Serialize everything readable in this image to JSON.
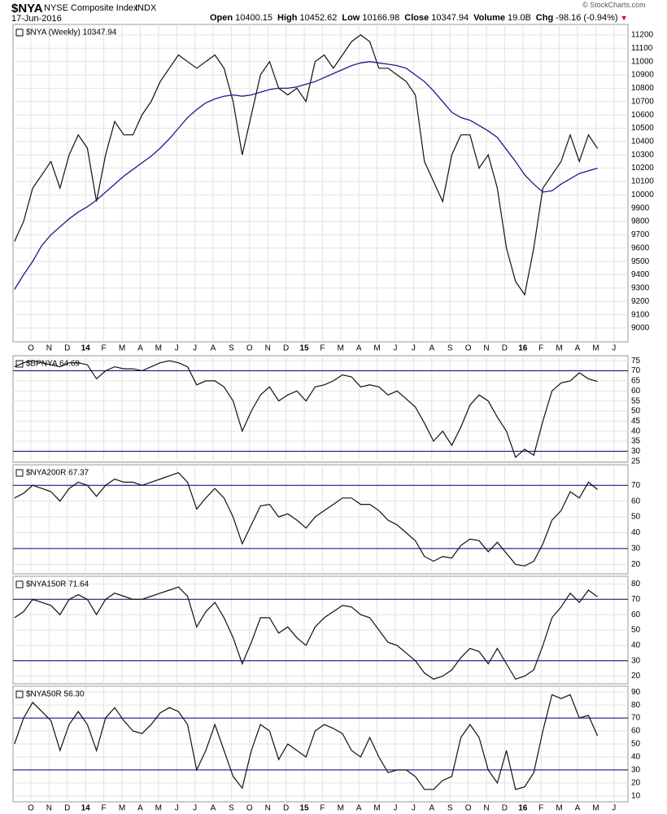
{
  "header": {
    "symbol": "$NYA",
    "name": "NYSE Composite Index",
    "exchange": "INDX",
    "date": "17-Jun-2016",
    "quote": [
      {
        "label": "Open",
        "value": 10400.15
      },
      {
        "label": "High",
        "value": 10452.62
      },
      {
        "label": "Low",
        "value": 10166.98
      },
      {
        "label": "Close",
        "value": 10347.94
      },
      {
        "label": "Volume",
        "value": "19.0B"
      },
      {
        "label": "Chg",
        "value": "-98.16 (-0.94%)"
      }
    ],
    "source": "© StockCharts.com"
  },
  "chart_data": [
    {
      "type": "line",
      "xtick_labels": [
        "O",
        "N",
        "D",
        "14",
        "F",
        "M",
        "A",
        "M",
        "J",
        "J",
        "A",
        "S",
        "O",
        "N",
        "D",
        "15",
        "F",
        "M",
        "A",
        "M",
        "J",
        "J",
        "A",
        "S",
        "O",
        "N",
        "D",
        "16",
        "F",
        "M",
        "A",
        "M",
        "J",
        "J"
      ],
      "ylim": [
        8896,
        11279
      ],
      "yticks": [
        9000,
        9100,
        9200,
        9300,
        9400,
        9500,
        9600,
        9700,
        9800,
        9900,
        10000,
        10100,
        10200,
        10300,
        10400,
        10500,
        10600,
        10700,
        10800,
        10900,
        11000,
        11100,
        11200
      ],
      "grid": true,
      "series": [
        {
          "name": "$NYA (Weekly) 10347.94",
          "color": "#111111",
          "values": [
            9650,
            9800,
            10050,
            10150,
            10250,
            10050,
            10300,
            10450,
            10350,
            9950,
            10300,
            10550,
            10450,
            10450,
            10600,
            10700,
            10850,
            10950,
            11050,
            11000,
            10950,
            11000,
            11050,
            10950,
            10700,
            10300,
            10600,
            10900,
            11000,
            10800,
            10750,
            10800,
            10700,
            11000,
            11050,
            10950,
            11050,
            11150,
            11200,
            11150,
            10950,
            10950,
            10900,
            10850,
            10750,
            10250,
            10100,
            9950,
            10300,
            10450,
            10450,
            10200,
            10300,
            10050,
            9600,
            9350,
            9250,
            9600,
            10050,
            10150,
            10250,
            10450,
            10250,
            10450,
            10347.94
          ]
        },
        {
          "color": "#1a1a8c",
          "values": [
            9290,
            9400,
            9500,
            9620,
            9700,
            9760,
            9820,
            9870,
            9910,
            9960,
            10020,
            10080,
            10140,
            10190,
            10240,
            10290,
            10350,
            10420,
            10500,
            10580,
            10640,
            10690,
            10720,
            10740,
            10750,
            10740,
            10750,
            10770,
            10790,
            10800,
            10800,
            10810,
            10830,
            10850,
            10880,
            10910,
            10940,
            10970,
            10990,
            11000,
            10990,
            10980,
            10970,
            10950,
            10900,
            10850,
            10780,
            10700,
            10620,
            10580,
            10560,
            10520,
            10480,
            10430,
            10340,
            10250,
            10150,
            10080,
            10020,
            10030,
            10080,
            10120,
            10160,
            10180,
            10200
          ]
        }
      ]
    },
    {
      "type": "line",
      "ylim": [
        24.5,
        77.5
      ],
      "yticks": [
        25,
        30,
        35,
        40,
        45,
        50,
        55,
        60,
        65,
        70,
        75
      ],
      "grid": true,
      "hlines": [
        70,
        30
      ],
      "hline_color": "#000080",
      "series": [
        {
          "name": "$BPNYA 64.69",
          "color": "#111111",
          "values": [
            72,
            74,
            75,
            74,
            73,
            72,
            74,
            74,
            73,
            66,
            70,
            72,
            71,
            71,
            70,
            72,
            74,
            75,
            74,
            72,
            63,
            65,
            65,
            62,
            55,
            40,
            50,
            58,
            62,
            55,
            58,
            60,
            55,
            62,
            63,
            65,
            68,
            67,
            62,
            63,
            62,
            58,
            60,
            56,
            52,
            44,
            35,
            40,
            33,
            42,
            53,
            58,
            55,
            47,
            40,
            27,
            31,
            28,
            45,
            60,
            64,
            65,
            69,
            66,
            64.69
          ]
        }
      ]
    },
    {
      "type": "line",
      "ylim": [
        14,
        83
      ],
      "yticks": [
        20,
        30,
        40,
        50,
        60,
        70
      ],
      "grid": true,
      "hlines": [
        70,
        30
      ],
      "hline_color": "#000080",
      "series": [
        {
          "name": "$NYA200R 67.37",
          "color": "#111111",
          "values": [
            62,
            65,
            70,
            68,
            66,
            60,
            68,
            72,
            70,
            63,
            70,
            74,
            72,
            72,
            70,
            72,
            74,
            76,
            78,
            72,
            55,
            62,
            68,
            62,
            50,
            33,
            45,
            57,
            58,
            50,
            52,
            48,
            43,
            50,
            54,
            58,
            62,
            62,
            58,
            58,
            54,
            48,
            45,
            40,
            35,
            25,
            22,
            25,
            24,
            32,
            36,
            35,
            28,
            34,
            27,
            20,
            19,
            22,
            33,
            48,
            54,
            66,
            62,
            72,
            67.37
          ]
        }
      ]
    },
    {
      "type": "line",
      "ylim": [
        15,
        85
      ],
      "yticks": [
        20,
        30,
        40,
        50,
        60,
        70,
        80
      ],
      "grid": true,
      "hlines": [
        70,
        30
      ],
      "hline_color": "#000080",
      "series": [
        {
          "name": "$NYA150R 71.64",
          "color": "#111111",
          "values": [
            58,
            62,
            70,
            68,
            66,
            60,
            70,
            73,
            70,
            60,
            70,
            74,
            72,
            70,
            70,
            72,
            74,
            76,
            78,
            72,
            52,
            62,
            68,
            58,
            45,
            28,
            42,
            58,
            58,
            48,
            52,
            45,
            40,
            52,
            58,
            62,
            66,
            65,
            60,
            58,
            50,
            42,
            40,
            35,
            30,
            22,
            18,
            20,
            24,
            32,
            38,
            36,
            28,
            38,
            28,
            18,
            20,
            24,
            40,
            58,
            65,
            74,
            68,
            76,
            71.64
          ]
        }
      ]
    },
    {
      "type": "line",
      "xtick_labels": [
        "O",
        "N",
        "D",
        "14",
        "F",
        "M",
        "A",
        "M",
        "J",
        "J",
        "A",
        "S",
        "O",
        "N",
        "D",
        "15",
        "F",
        "M",
        "A",
        "M",
        "J",
        "J",
        "A",
        "S",
        "O",
        "N",
        "D",
        "16",
        "F",
        "M",
        "A",
        "M",
        "J",
        "J"
      ],
      "ylim": [
        5.5,
        94.5
      ],
      "yticks": [
        10,
        20,
        30,
        40,
        50,
        60,
        70,
        80,
        90
      ],
      "grid": true,
      "hlines": [
        70,
        30
      ],
      "hline_color": "#000080",
      "series": [
        {
          "name": "$NYA50R 56.30",
          "color": "#111111",
          "values": [
            50,
            70,
            82,
            75,
            68,
            45,
            65,
            75,
            65,
            45,
            70,
            78,
            68,
            60,
            58,
            65,
            74,
            78,
            75,
            65,
            30,
            45,
            65,
            45,
            25,
            16,
            45,
            65,
            60,
            38,
            50,
            45,
            40,
            60,
            65,
            62,
            58,
            45,
            40,
            55,
            40,
            28,
            30,
            30,
            25,
            15,
            15,
            22,
            25,
            55,
            65,
            55,
            30,
            20,
            45,
            15,
            17,
            28,
            60,
            88,
            85,
            88,
            70,
            72,
            56.3
          ]
        }
      ]
    }
  ]
}
